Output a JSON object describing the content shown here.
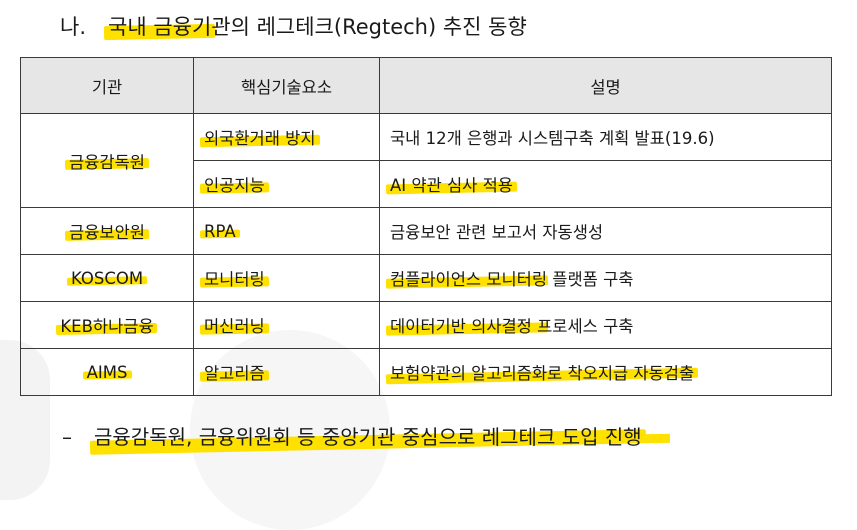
{
  "heading": {
    "number": "나.",
    "text_highlighted": "국내 금융기",
    "text_rest": "관의 레그테크(Regtech) 추진 동향"
  },
  "table": {
    "headers": [
      "기관",
      "핵심기술요소",
      "설명"
    ],
    "rows": [
      {
        "agency": "금융감독원",
        "tech": "외국환거래 방지",
        "desc": "국내 12개 은행과 시스템구축 계획 발표(19.6)"
      },
      {
        "agency": "",
        "tech": "인공지능",
        "desc": "AI 약관 심사 적용"
      },
      {
        "agency": "금융보안원",
        "tech": "RPA",
        "desc": "금융보안 관련 보고서 자동생성"
      },
      {
        "agency": "KOSCOM",
        "tech": "모니터링",
        "desc": "컴플라이언스 모니터링 플랫폼 구축"
      },
      {
        "agency": "KEB하나금융",
        "tech": "머신러닝",
        "desc": "데이터기반 의사결정 프로세스 구축"
      },
      {
        "agency": "AIMS",
        "tech": "알고리즘",
        "desc": "보험약관의 알고리즘화로 착오지급 자동검출"
      }
    ]
  },
  "footer": {
    "bullet": "–",
    "text": "금융감독원, 금융위원회 등 중앙기관 중심으로 레그테크 도입 진행"
  },
  "colors": {
    "highlight": "#ffe100",
    "header_bg": "#e6e6e6",
    "border": "#3a3a3a"
  }
}
